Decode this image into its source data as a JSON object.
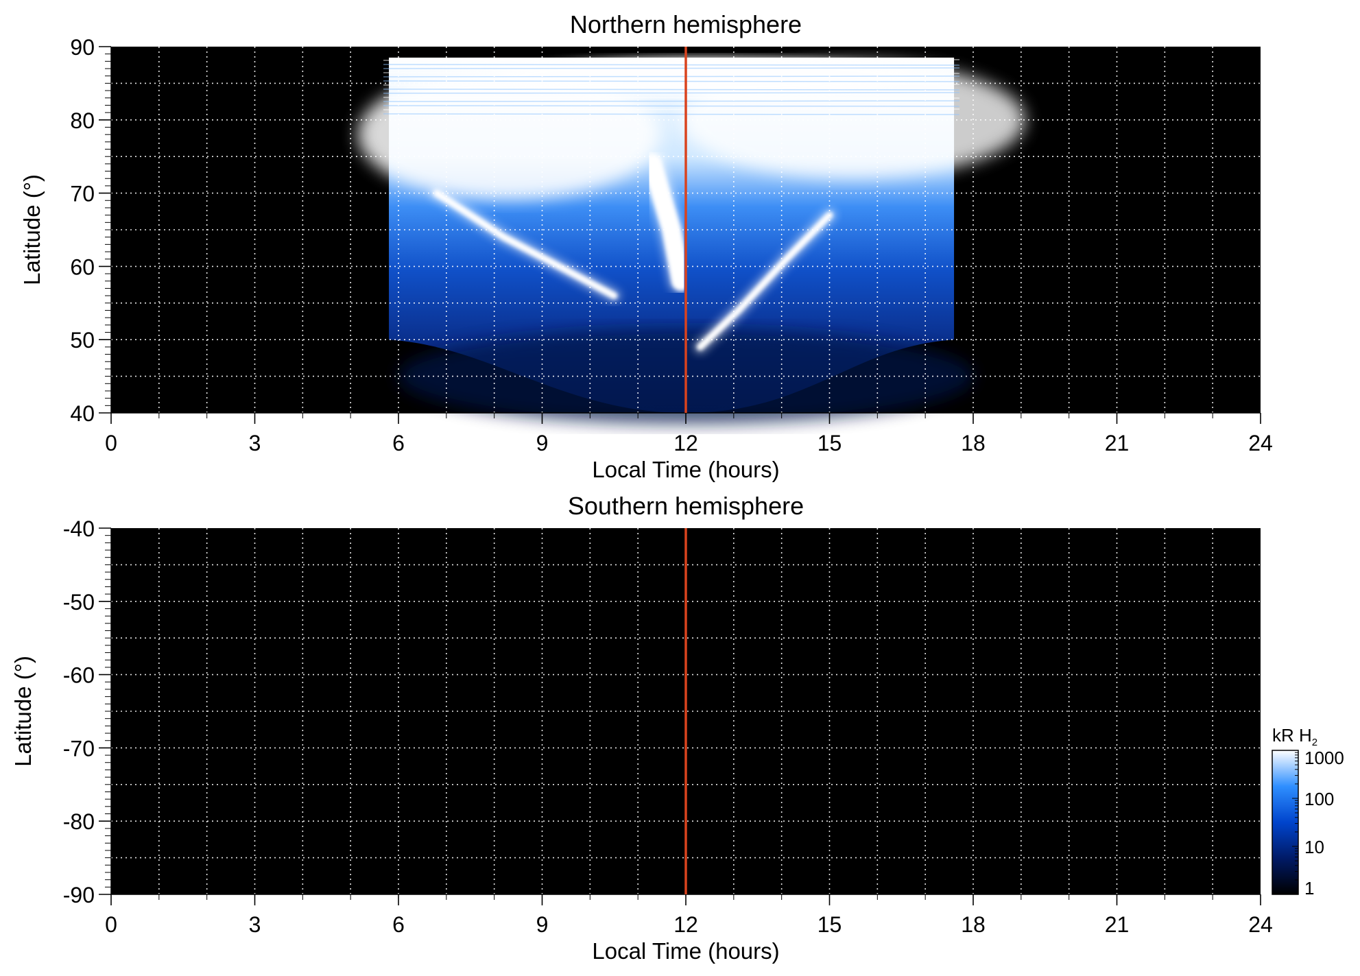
{
  "chart_data": [
    {
      "type": "heatmap",
      "title": "Northern hemisphere",
      "xlabel": "Local Time (hours)",
      "ylabel": "Latitude (°)",
      "xlim": [
        0,
        24
      ],
      "ylim": [
        40,
        90
      ],
      "xticks": [
        "0",
        "3",
        "6",
        "9",
        "12",
        "15",
        "18",
        "21",
        "24"
      ],
      "yticks": [
        "40",
        "50",
        "60",
        "70",
        "80",
        "90"
      ],
      "grid": true,
      "reference_line": {
        "x": 12,
        "color": "#d9431e"
      },
      "coverage": {
        "lt_range": [
          5.8,
          17.6
        ],
        "lat_top": 88.5,
        "lat_bottom_edge": 50,
        "lat_min_noon": 40
      },
      "features": [
        {
          "name": "dawn arc",
          "points": [
            [
              6.8,
              70
            ],
            [
              8.2,
              64
            ],
            [
              9.5,
              59.5
            ],
            [
              10.5,
              56
            ]
          ]
        },
        {
          "name": "dusk arc",
          "points": [
            [
              12.3,
              49
            ],
            [
              13.1,
              54
            ],
            [
              14.1,
              61
            ],
            [
              15.0,
              67
            ]
          ]
        },
        {
          "name": "noon bright",
          "points": [
            [
              11.3,
              74
            ],
            [
              11.7,
              65
            ],
            [
              11.9,
              58
            ]
          ]
        }
      ]
    },
    {
      "type": "heatmap",
      "title": "Southern hemisphere",
      "xlabel": "Local Time (hours)",
      "ylabel": "Latitude (°)",
      "xlim": [
        0,
        24
      ],
      "ylim": [
        -90,
        -40
      ],
      "xticks": [
        "0",
        "3",
        "6",
        "9",
        "12",
        "15",
        "18",
        "21",
        "24"
      ],
      "yticks": [
        "-40",
        "-50",
        "-60",
        "-70",
        "-80",
        "-90"
      ],
      "grid": true,
      "reference_line": {
        "x": 12,
        "color": "#d9431e"
      }
    }
  ],
  "colorbar": {
    "label": "kR H",
    "label_sub": "2",
    "scale": "log",
    "range": [
      1,
      1000
    ],
    "ticks": [
      "1",
      "10",
      "100",
      "1000"
    ],
    "colors": [
      "#000000",
      "#001a66",
      "#0044cc",
      "#2f8fff",
      "#ffffff"
    ]
  }
}
